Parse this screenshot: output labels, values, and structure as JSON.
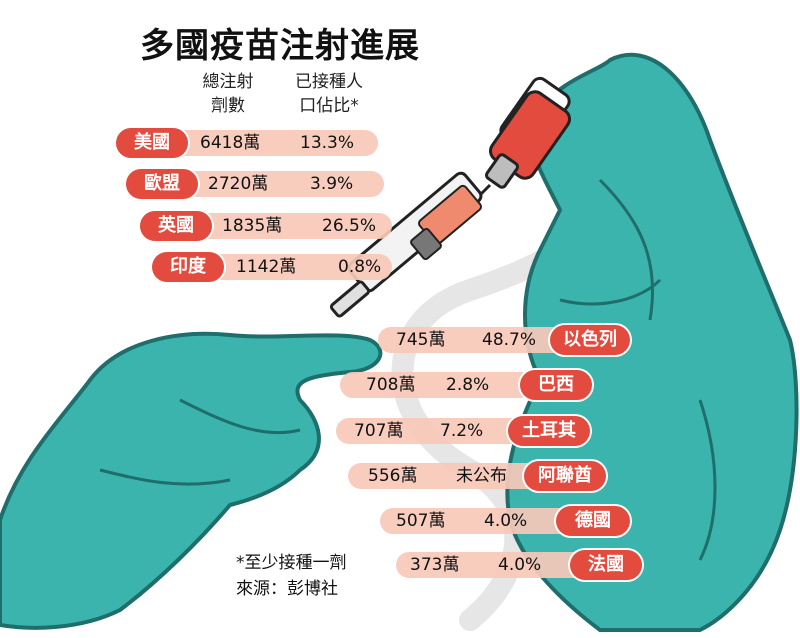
{
  "chart_data": {
    "type": "table",
    "title": "多國疫苗注射進展",
    "columns": [
      {
        "line1": "總注射",
        "line2": "劑數"
      },
      {
        "line1": "已接種人",
        "line2": "口佔比*"
      }
    ],
    "rows": [
      {
        "country": "美國",
        "doses": "6418萬",
        "share": "13.3%"
      },
      {
        "country": "歐盟",
        "doses": "2720萬",
        "share": "3.9%"
      },
      {
        "country": "英國",
        "doses": "1835萬",
        "share": "26.5%"
      },
      {
        "country": "印度",
        "doses": "1142萬",
        "share": "0.8%"
      },
      {
        "country": "以色列",
        "doses": "745萬",
        "share": "48.7%"
      },
      {
        "country": "巴西",
        "doses": "708萬",
        "share": "2.8%"
      },
      {
        "country": "土耳其",
        "doses": "707萬",
        "share": "7.2%"
      },
      {
        "country": "阿聯酋",
        "doses": "556萬",
        "share": "未公布"
      },
      {
        "country": "德國",
        "doses": "507萬",
        "share": "4.0%"
      },
      {
        "country": "法國",
        "doses": "373萬",
        "share": "4.0%"
      }
    ],
    "footnote": "*至少接種一劑",
    "source": "來源：彭博社"
  },
  "colors": {
    "badge": "#e24b3e",
    "pill": "#f7c9b8",
    "glove": "#3bb4ae",
    "glove_dark": "#1f6e6b"
  }
}
